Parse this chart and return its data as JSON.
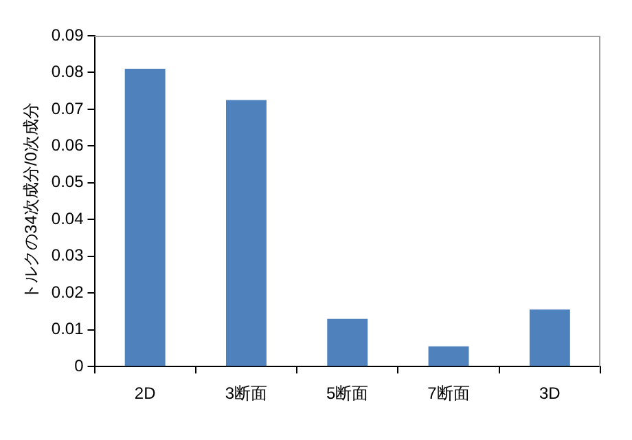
{
  "chart_data": {
    "type": "bar",
    "ylabel": "トルクの34次成分/0次成分",
    "categories": [
      "2D",
      "3断面",
      "5断面",
      "7断面",
      "3D"
    ],
    "values": [
      0.081,
      0.0725,
      0.013,
      0.0055,
      0.0155
    ],
    "color": "#4f81bd",
    "ylim": [
      0,
      0.09
    ],
    "yticks": [
      0,
      0.01,
      0.02,
      0.03,
      0.04,
      0.05,
      0.06,
      0.07,
      0.08,
      0.09
    ],
    "grid": false,
    "legend": false
  }
}
